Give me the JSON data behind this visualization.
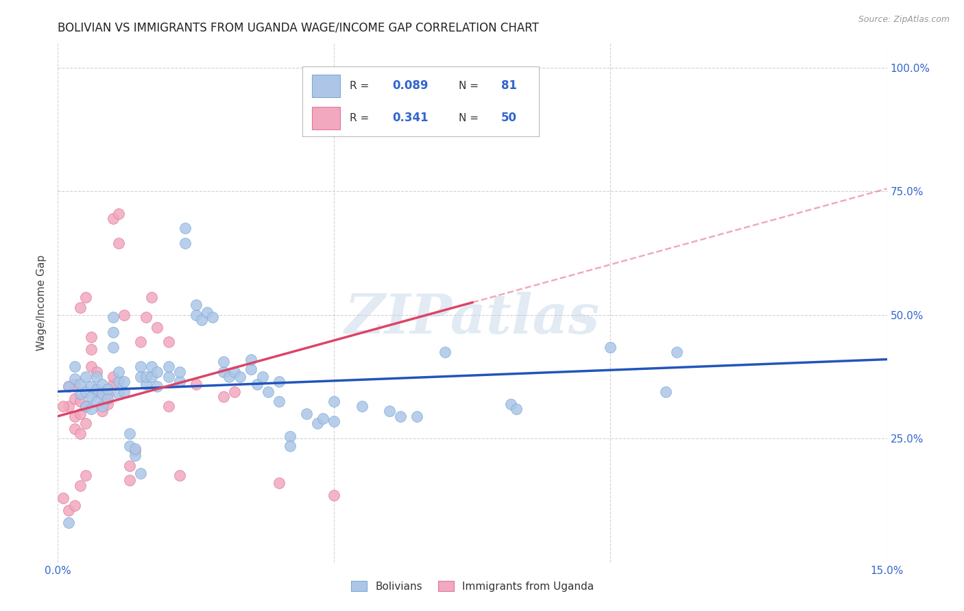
{
  "title": "BOLIVIAN VS IMMIGRANTS FROM UGANDA WAGE/INCOME GAP CORRELATION CHART",
  "source": "Source: ZipAtlas.com",
  "ylabel": "Wage/Income Gap",
  "xlim": [
    0.0,
    0.15
  ],
  "ylim": [
    0.0,
    1.05
  ],
  "ytick_positions": [
    0.25,
    0.5,
    0.75,
    1.0
  ],
  "yticklabels": [
    "25.0%",
    "50.0%",
    "75.0%",
    "100.0%"
  ],
  "watermark": "ZIPatlas",
  "blue_color": "#adc6e8",
  "pink_color": "#f2a8bf",
  "blue_edge_color": "#7aaad4",
  "pink_edge_color": "#e07898",
  "blue_line_color": "#2255bb",
  "pink_line_color": "#dd4466",
  "blue_scatter": [
    [
      0.002,
      0.355
    ],
    [
      0.003,
      0.37
    ],
    [
      0.003,
      0.395
    ],
    [
      0.004,
      0.34
    ],
    [
      0.004,
      0.36
    ],
    [
      0.005,
      0.315
    ],
    [
      0.005,
      0.345
    ],
    [
      0.005,
      0.375
    ],
    [
      0.006,
      0.31
    ],
    [
      0.006,
      0.335
    ],
    [
      0.006,
      0.355
    ],
    [
      0.007,
      0.325
    ],
    [
      0.007,
      0.35
    ],
    [
      0.007,
      0.375
    ],
    [
      0.008,
      0.315
    ],
    [
      0.008,
      0.34
    ],
    [
      0.008,
      0.36
    ],
    [
      0.009,
      0.33
    ],
    [
      0.009,
      0.35
    ],
    [
      0.01,
      0.435
    ],
    [
      0.01,
      0.465
    ],
    [
      0.01,
      0.495
    ],
    [
      0.011,
      0.34
    ],
    [
      0.011,
      0.365
    ],
    [
      0.011,
      0.385
    ],
    [
      0.012,
      0.345
    ],
    [
      0.012,
      0.365
    ],
    [
      0.013,
      0.235
    ],
    [
      0.013,
      0.26
    ],
    [
      0.014,
      0.215
    ],
    [
      0.014,
      0.23
    ],
    [
      0.015,
      0.375
    ],
    [
      0.015,
      0.395
    ],
    [
      0.016,
      0.36
    ],
    [
      0.016,
      0.375
    ],
    [
      0.017,
      0.375
    ],
    [
      0.017,
      0.395
    ],
    [
      0.018,
      0.355
    ],
    [
      0.018,
      0.385
    ],
    [
      0.02,
      0.375
    ],
    [
      0.02,
      0.395
    ],
    [
      0.022,
      0.365
    ],
    [
      0.022,
      0.385
    ],
    [
      0.023,
      0.645
    ],
    [
      0.023,
      0.675
    ],
    [
      0.025,
      0.5
    ],
    [
      0.025,
      0.52
    ],
    [
      0.026,
      0.49
    ],
    [
      0.027,
      0.505
    ],
    [
      0.028,
      0.495
    ],
    [
      0.03,
      0.385
    ],
    [
      0.03,
      0.405
    ],
    [
      0.031,
      0.375
    ],
    [
      0.032,
      0.385
    ],
    [
      0.033,
      0.375
    ],
    [
      0.035,
      0.39
    ],
    [
      0.035,
      0.41
    ],
    [
      0.036,
      0.36
    ],
    [
      0.037,
      0.375
    ],
    [
      0.038,
      0.345
    ],
    [
      0.04,
      0.365
    ],
    [
      0.04,
      0.325
    ],
    [
      0.042,
      0.255
    ],
    [
      0.042,
      0.235
    ],
    [
      0.045,
      0.3
    ],
    [
      0.047,
      0.28
    ],
    [
      0.048,
      0.29
    ],
    [
      0.05,
      0.325
    ],
    [
      0.05,
      0.285
    ],
    [
      0.055,
      0.315
    ],
    [
      0.06,
      0.305
    ],
    [
      0.062,
      0.295
    ],
    [
      0.065,
      0.295
    ],
    [
      0.07,
      0.425
    ],
    [
      0.082,
      0.32
    ],
    [
      0.083,
      0.31
    ],
    [
      0.1,
      0.435
    ],
    [
      0.11,
      0.345
    ],
    [
      0.112,
      0.425
    ],
    [
      0.002,
      0.08
    ],
    [
      0.015,
      0.18
    ]
  ],
  "pink_scatter": [
    [
      0.002,
      0.315
    ],
    [
      0.002,
      0.355
    ],
    [
      0.003,
      0.27
    ],
    [
      0.003,
      0.295
    ],
    [
      0.003,
      0.33
    ],
    [
      0.003,
      0.36
    ],
    [
      0.004,
      0.26
    ],
    [
      0.004,
      0.3
    ],
    [
      0.004,
      0.325
    ],
    [
      0.004,
      0.515
    ],
    [
      0.005,
      0.535
    ],
    [
      0.005,
      0.315
    ],
    [
      0.005,
      0.28
    ],
    [
      0.006,
      0.395
    ],
    [
      0.006,
      0.43
    ],
    [
      0.006,
      0.455
    ],
    [
      0.007,
      0.385
    ],
    [
      0.007,
      0.345
    ],
    [
      0.008,
      0.305
    ],
    [
      0.008,
      0.345
    ],
    [
      0.009,
      0.34
    ],
    [
      0.009,
      0.32
    ],
    [
      0.01,
      0.36
    ],
    [
      0.01,
      0.375
    ],
    [
      0.01,
      0.695
    ],
    [
      0.011,
      0.645
    ],
    [
      0.011,
      0.705
    ],
    [
      0.012,
      0.5
    ],
    [
      0.013,
      0.165
    ],
    [
      0.013,
      0.195
    ],
    [
      0.014,
      0.225
    ],
    [
      0.015,
      0.445
    ],
    [
      0.016,
      0.495
    ],
    [
      0.017,
      0.535
    ],
    [
      0.018,
      0.475
    ],
    [
      0.02,
      0.445
    ],
    [
      0.02,
      0.315
    ],
    [
      0.022,
      0.175
    ],
    [
      0.025,
      0.36
    ],
    [
      0.03,
      0.335
    ],
    [
      0.032,
      0.345
    ],
    [
      0.04,
      0.16
    ],
    [
      0.05,
      0.135
    ],
    [
      0.001,
      0.315
    ],
    [
      0.001,
      0.13
    ],
    [
      0.002,
      0.105
    ],
    [
      0.003,
      0.115
    ],
    [
      0.004,
      0.155
    ],
    [
      0.005,
      0.175
    ]
  ],
  "blue_trendline": [
    [
      0.0,
      0.345
    ],
    [
      0.15,
      0.41
    ]
  ],
  "pink_trendline_solid": [
    [
      0.0,
      0.295
    ],
    [
      0.075,
      0.525
    ]
  ],
  "pink_trendline_dashed": [
    [
      0.075,
      0.525
    ],
    [
      0.15,
      0.755
    ]
  ],
  "background_color": "#ffffff",
  "grid_color": "#cccccc",
  "title_fontsize": 12,
  "axis_label_fontsize": 11,
  "tick_fontsize": 11,
  "legend_fontsize": 12
}
